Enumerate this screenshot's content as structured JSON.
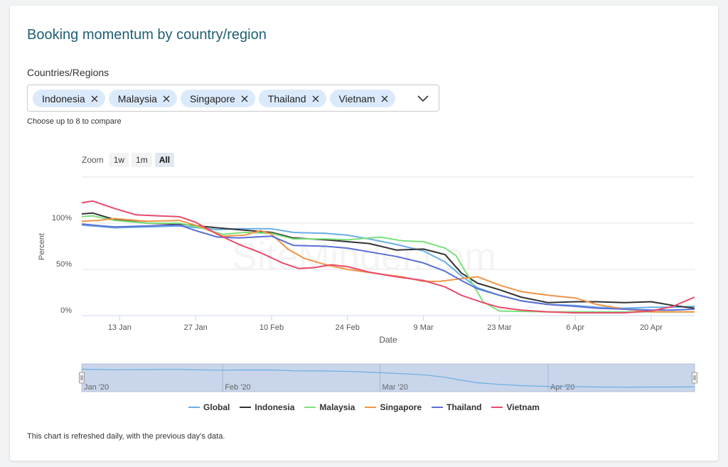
{
  "title": "Booking momentum by country/region",
  "filter": {
    "label": "Countries/Regions",
    "chips": [
      "Indonesia",
      "Malaysia",
      "Singapore",
      "Thailand",
      "Vietnam"
    ],
    "helper": "Choose up to 8 to compare"
  },
  "zoom": {
    "label": "Zoom",
    "options": [
      "1w",
      "1m",
      "All"
    ],
    "selected": "All"
  },
  "watermark": "SiteMinder.com",
  "footnote": "This chart is refreshed daily, with the previous day’s data.",
  "chart_data": {
    "type": "line",
    "title": "",
    "xlabel": "Date",
    "ylabel": "Percent",
    "x_range": [
      "2020-01-06",
      "2020-04-28"
    ],
    "ylim": [
      0,
      150
    ],
    "x_ticks": [
      {
        "date": "2020-01-13",
        "label": "13 Jan"
      },
      {
        "date": "2020-01-27",
        "label": "27 Jan"
      },
      {
        "date": "2020-02-10",
        "label": "10 Feb"
      },
      {
        "date": "2020-02-24",
        "label": "24 Feb"
      },
      {
        "date": "2020-03-09",
        "label": "9 Mar"
      },
      {
        "date": "2020-03-23",
        "label": "23 Mar"
      },
      {
        "date": "2020-04-06",
        "label": "6 Apr"
      },
      {
        "date": "2020-04-20",
        "label": "20 Apr"
      }
    ],
    "y_ticks": [
      {
        "value": 0,
        "label": "0%"
      },
      {
        "value": 50,
        "label": "50%"
      },
      {
        "value": 100,
        "label": "100%"
      }
    ],
    "grid": true,
    "legend": "bottom",
    "navigator_labels": [
      "Jan '20",
      "Feb '20",
      "Mar '20",
      "Apr '20"
    ],
    "series": [
      {
        "name": "Global",
        "color": "#6aaee6",
        "points": [
          [
            "2020-01-06",
            98
          ],
          [
            "2020-01-12",
            95
          ],
          [
            "2020-01-18",
            96
          ],
          [
            "2020-01-24",
            97
          ],
          [
            "2020-01-31",
            93
          ],
          [
            "2020-02-04",
            94
          ],
          [
            "2020-02-10",
            94
          ],
          [
            "2020-02-14",
            90
          ],
          [
            "2020-02-20",
            89
          ],
          [
            "2020-02-24",
            87
          ],
          [
            "2020-02-28",
            83
          ],
          [
            "2020-03-04",
            77
          ],
          [
            "2020-03-09",
            70
          ],
          [
            "2020-03-13",
            58
          ],
          [
            "2020-03-16",
            43
          ],
          [
            "2020-03-19",
            30
          ],
          [
            "2020-03-23",
            22
          ],
          [
            "2020-03-27",
            16
          ],
          [
            "2020-04-01",
            12
          ],
          [
            "2020-04-06",
            11
          ],
          [
            "2020-04-10",
            9
          ],
          [
            "2020-04-15",
            8
          ],
          [
            "2020-04-20",
            9
          ],
          [
            "2020-04-24",
            9
          ],
          [
            "2020-04-28",
            10
          ]
        ]
      },
      {
        "name": "Indonesia",
        "color": "#333333",
        "points": [
          [
            "2020-01-06",
            110
          ],
          [
            "2020-01-08",
            111
          ],
          [
            "2020-01-12",
            104
          ],
          [
            "2020-01-18",
            100
          ],
          [
            "2020-01-24",
            99
          ],
          [
            "2020-01-31",
            95
          ],
          [
            "2020-02-04",
            93
          ],
          [
            "2020-02-10",
            90
          ],
          [
            "2020-02-14",
            84
          ],
          [
            "2020-02-20",
            82
          ],
          [
            "2020-02-24",
            80
          ],
          [
            "2020-02-28",
            78
          ],
          [
            "2020-03-04",
            71
          ],
          [
            "2020-03-09",
            72
          ],
          [
            "2020-03-13",
            66
          ],
          [
            "2020-03-16",
            46
          ],
          [
            "2020-03-19",
            35
          ],
          [
            "2020-03-23",
            28
          ],
          [
            "2020-03-27",
            20
          ],
          [
            "2020-04-01",
            14
          ],
          [
            "2020-04-06",
            15
          ],
          [
            "2020-04-10",
            15
          ],
          [
            "2020-04-15",
            14
          ],
          [
            "2020-04-20",
            15
          ],
          [
            "2020-04-24",
            11
          ],
          [
            "2020-04-28",
            8
          ]
        ]
      },
      {
        "name": "Malaysia",
        "color": "#7be07b",
        "points": [
          [
            "2020-01-06",
            107
          ],
          [
            "2020-01-08",
            108
          ],
          [
            "2020-01-12",
            103
          ],
          [
            "2020-01-18",
            100
          ],
          [
            "2020-01-24",
            100
          ],
          [
            "2020-01-28",
            95
          ],
          [
            "2020-02-01",
            88
          ],
          [
            "2020-02-05",
            90
          ],
          [
            "2020-02-10",
            89
          ],
          [
            "2020-02-14",
            83
          ],
          [
            "2020-02-20",
            83
          ],
          [
            "2020-02-24",
            82
          ],
          [
            "2020-03-01",
            85
          ],
          [
            "2020-03-05",
            81
          ],
          [
            "2020-03-09",
            80
          ],
          [
            "2020-03-13",
            73
          ],
          [
            "2020-03-15",
            65
          ],
          [
            "2020-03-17",
            45
          ],
          [
            "2020-03-20",
            15
          ],
          [
            "2020-03-23",
            5
          ],
          [
            "2020-04-01",
            4
          ],
          [
            "2020-04-10",
            4
          ],
          [
            "2020-04-20",
            4
          ],
          [
            "2020-04-28",
            4
          ]
        ]
      },
      {
        "name": "Singapore",
        "color": "#f29447",
        "points": [
          [
            "2020-01-06",
            102
          ],
          [
            "2020-01-09",
            103
          ],
          [
            "2020-01-12",
            105
          ],
          [
            "2020-01-18",
            102
          ],
          [
            "2020-01-24",
            103
          ],
          [
            "2020-01-28",
            96
          ],
          [
            "2020-02-01",
            86
          ],
          [
            "2020-02-05",
            87
          ],
          [
            "2020-02-08",
            92
          ],
          [
            "2020-02-10",
            88
          ],
          [
            "2020-02-13",
            72
          ],
          [
            "2020-02-16",
            62
          ],
          [
            "2020-02-20",
            55
          ],
          [
            "2020-02-24",
            50
          ],
          [
            "2020-03-01",
            45
          ],
          [
            "2020-03-05",
            42
          ],
          [
            "2020-03-09",
            37
          ],
          [
            "2020-03-12",
            37
          ],
          [
            "2020-03-16",
            40
          ],
          [
            "2020-03-19",
            42
          ],
          [
            "2020-03-23",
            33
          ],
          [
            "2020-03-27",
            26
          ],
          [
            "2020-04-01",
            22
          ],
          [
            "2020-04-06",
            19
          ],
          [
            "2020-04-10",
            12
          ],
          [
            "2020-04-15",
            7
          ],
          [
            "2020-04-20",
            4
          ],
          [
            "2020-04-28",
            4
          ]
        ]
      },
      {
        "name": "Thailand",
        "color": "#5b6fd6",
        "points": [
          [
            "2020-01-06",
            99
          ],
          [
            "2020-01-12",
            96
          ],
          [
            "2020-01-18",
            97
          ],
          [
            "2020-01-24",
            98
          ],
          [
            "2020-01-27",
            92
          ],
          [
            "2020-01-31",
            85
          ],
          [
            "2020-02-04",
            84
          ],
          [
            "2020-02-10",
            86
          ],
          [
            "2020-02-14",
            76
          ],
          [
            "2020-02-20",
            75
          ],
          [
            "2020-02-24",
            73
          ],
          [
            "2020-02-28",
            69
          ],
          [
            "2020-03-04",
            64
          ],
          [
            "2020-03-09",
            57
          ],
          [
            "2020-03-13",
            48
          ],
          [
            "2020-03-16",
            38
          ],
          [
            "2020-03-19",
            29
          ],
          [
            "2020-03-23",
            22
          ],
          [
            "2020-03-27",
            16
          ],
          [
            "2020-04-01",
            12
          ],
          [
            "2020-04-06",
            10
          ],
          [
            "2020-04-10",
            8
          ],
          [
            "2020-04-15",
            7
          ],
          [
            "2020-04-20",
            6
          ],
          [
            "2020-04-24",
            6
          ],
          [
            "2020-04-28",
            7
          ]
        ]
      },
      {
        "name": "Vietnam",
        "color": "#e84a6b",
        "points": [
          [
            "2020-01-06",
            122
          ],
          [
            "2020-01-08",
            124
          ],
          [
            "2020-01-12",
            116
          ],
          [
            "2020-01-16",
            109
          ],
          [
            "2020-01-20",
            108
          ],
          [
            "2020-01-24",
            107
          ],
          [
            "2020-01-27",
            101
          ],
          [
            "2020-01-31",
            88
          ],
          [
            "2020-02-04",
            77
          ],
          [
            "2020-02-08",
            68
          ],
          [
            "2020-02-12",
            57
          ],
          [
            "2020-02-15",
            51
          ],
          [
            "2020-02-18",
            52
          ],
          [
            "2020-02-21",
            55
          ],
          [
            "2020-02-24",
            53
          ],
          [
            "2020-02-28",
            47
          ],
          [
            "2020-03-04",
            42
          ],
          [
            "2020-03-09",
            38
          ],
          [
            "2020-03-13",
            31
          ],
          [
            "2020-03-16",
            22
          ],
          [
            "2020-03-20",
            14
          ],
          [
            "2020-03-23",
            9
          ],
          [
            "2020-03-27",
            6
          ],
          [
            "2020-04-01",
            4
          ],
          [
            "2020-04-06",
            3
          ],
          [
            "2020-04-10",
            3
          ],
          [
            "2020-04-15",
            3
          ],
          [
            "2020-04-20",
            5
          ],
          [
            "2020-04-24",
            10
          ],
          [
            "2020-04-28",
            20
          ]
        ]
      }
    ]
  }
}
